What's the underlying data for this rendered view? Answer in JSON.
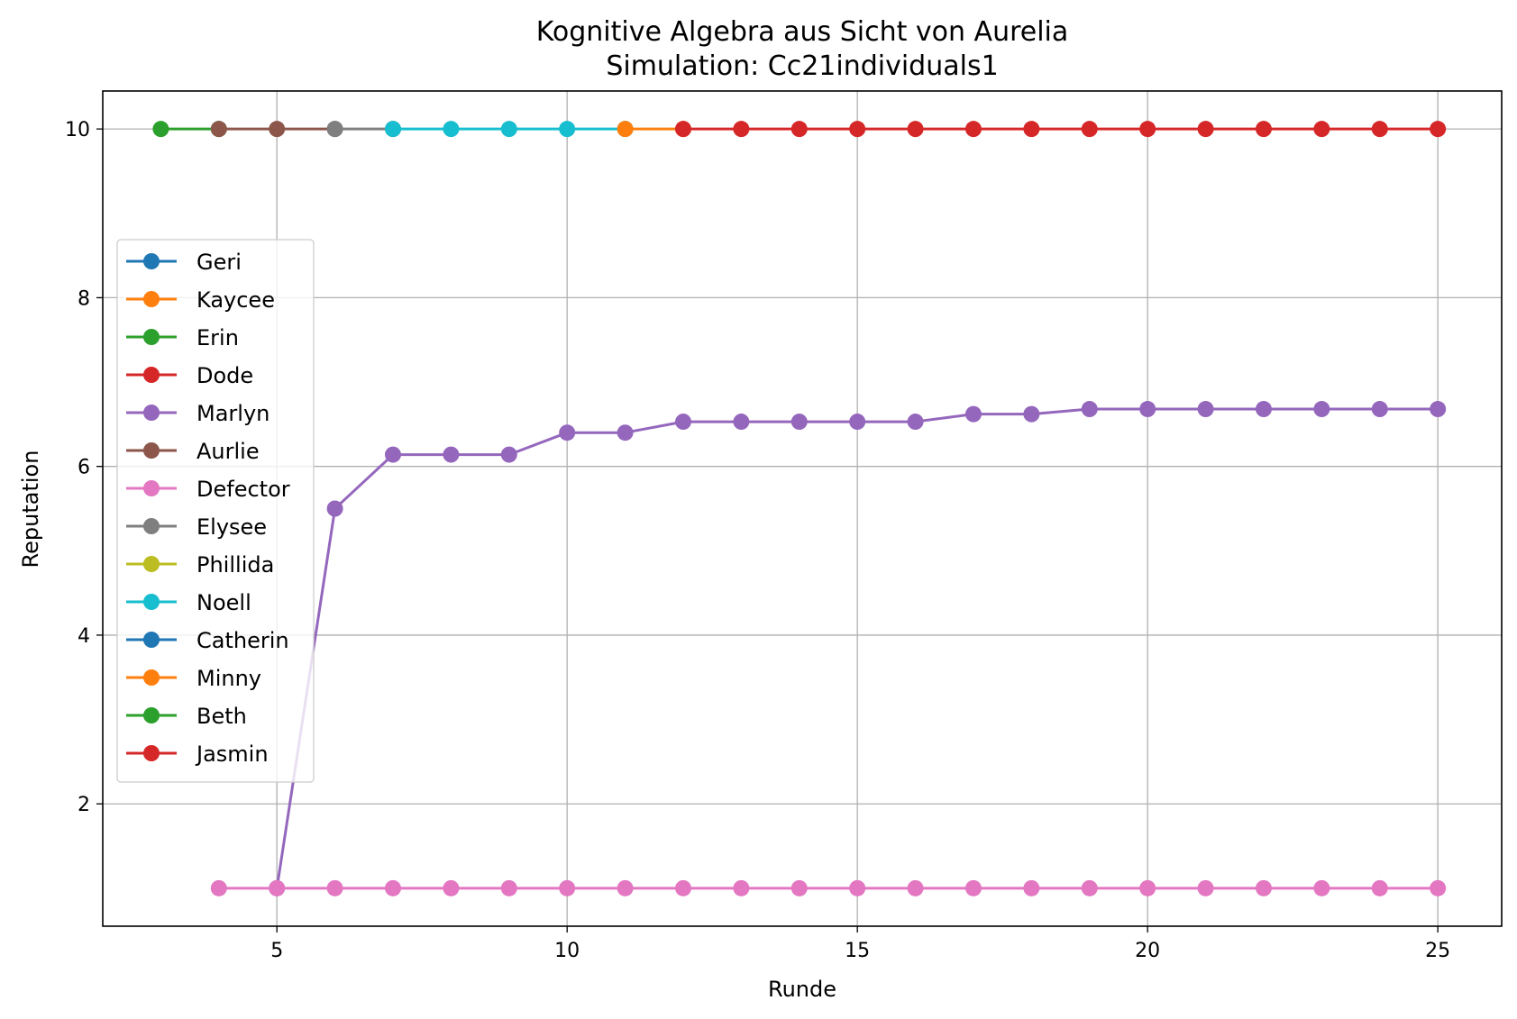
{
  "chart_data": {
    "type": "line",
    "title": "Kognitive Algebra aus Sicht von Aurelia",
    "subtitle": "Simulation: Cc21individuals1",
    "xlabel": "Runde",
    "ylabel": "Reputation",
    "xlim": [
      2,
      26.1
    ],
    "ylim": [
      0.55,
      10.45
    ],
    "xticks": [
      5,
      10,
      15,
      20,
      25
    ],
    "yticks": [
      2,
      4,
      6,
      8,
      10
    ],
    "grid": true,
    "legend_position": "center-left",
    "series": [
      {
        "name": "Geri",
        "color": "#1f77b4",
        "x": [],
        "y": []
      },
      {
        "name": "Kaycee",
        "color": "#ff7f0e",
        "x": [],
        "y": []
      },
      {
        "name": "Erin",
        "color": "#2ca02c",
        "x": [
          3,
          4
        ],
        "y": [
          10,
          10
        ]
      },
      {
        "name": "Dode",
        "color": "#d62728",
        "x": [],
        "y": []
      },
      {
        "name": "Marlyn",
        "color": "#9467bd",
        "x": [
          5,
          6,
          7,
          8,
          9,
          10,
          11,
          12,
          13,
          14,
          15,
          16,
          17,
          18,
          19,
          20,
          21,
          22,
          23,
          24,
          25
        ],
        "y": [
          1.0,
          5.5,
          6.14,
          6.14,
          6.14,
          6.4,
          6.4,
          6.53,
          6.53,
          6.53,
          6.53,
          6.53,
          6.62,
          6.62,
          6.68,
          6.68,
          6.68,
          6.68,
          6.68,
          6.68,
          6.68
        ]
      },
      {
        "name": "Aurlie",
        "color": "#8c564b",
        "x": [
          4,
          5,
          6
        ],
        "y": [
          10,
          10,
          10
        ]
      },
      {
        "name": "Defector",
        "color": "#e377c2",
        "x": [
          4,
          5,
          6,
          7,
          8,
          9,
          10,
          11,
          12,
          13,
          14,
          15,
          16,
          17,
          18,
          19,
          20,
          21,
          22,
          23,
          24,
          25
        ],
        "y": [
          1,
          1,
          1,
          1,
          1,
          1,
          1,
          1,
          1,
          1,
          1,
          1,
          1,
          1,
          1,
          1,
          1,
          1,
          1,
          1,
          1,
          1
        ]
      },
      {
        "name": "Elysee",
        "color": "#7f7f7f",
        "x": [
          6,
          7
        ],
        "y": [
          10,
          10
        ]
      },
      {
        "name": "Phillida",
        "color": "#bcbd22",
        "x": [],
        "y": []
      },
      {
        "name": "Noell",
        "color": "#17becf",
        "x": [
          7,
          8,
          9,
          10,
          11
        ],
        "y": [
          10,
          10,
          10,
          10,
          10
        ]
      },
      {
        "name": "Catherin",
        "color": "#1f77b4",
        "x": [],
        "y": []
      },
      {
        "name": "Minny",
        "color": "#ff7f0e",
        "x": [
          11,
          12
        ],
        "y": [
          10,
          10
        ]
      },
      {
        "name": "Beth",
        "color": "#2ca02c",
        "x": [],
        "y": []
      },
      {
        "name": "Jasmin",
        "color": "#d62728",
        "x": [
          12,
          13,
          14,
          15,
          16,
          17,
          18,
          19,
          20,
          21,
          22,
          23,
          24,
          25
        ],
        "y": [
          10,
          10,
          10,
          10,
          10,
          10,
          10,
          10,
          10,
          10,
          10,
          10,
          10,
          10
        ]
      }
    ]
  }
}
